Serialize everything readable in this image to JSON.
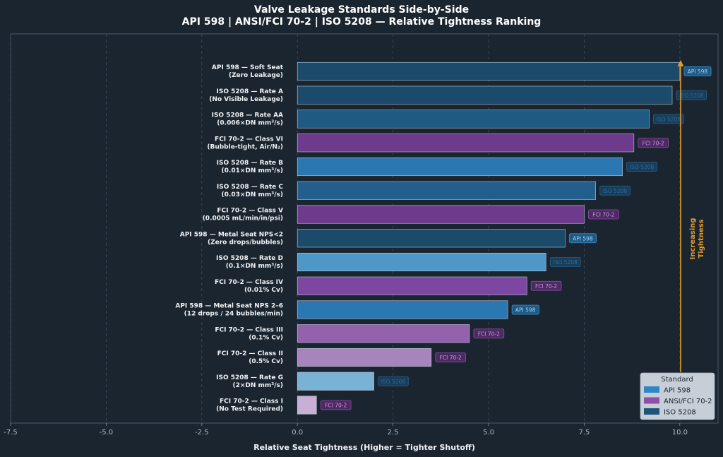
{
  "chart_data": {
    "type": "bar",
    "orientation": "horizontal",
    "title": "Valve Leakage Standards Side-by-Side",
    "subtitle": "API 598 | ANSI/FCI 70-2 | ISO 5208 — Relative Tightness Ranking",
    "xlabel": "Relative Seat Tightness (Higher = Tighter Shutoff)",
    "xlim": [
      -7.5,
      11.0
    ],
    "xticks": [
      "-7.5",
      "-5.0",
      "-2.5",
      "0.0",
      "2.5",
      "5.0",
      "7.5",
      "10.0"
    ],
    "xtick_values": [
      -7.5,
      -5.0,
      -2.5,
      0.0,
      2.5,
      5.0,
      7.5,
      10.0
    ],
    "grid": true,
    "colors": {
      "background": "#1b2530",
      "api": "#2f86c7",
      "fci": "#8e4fa8",
      "iso": "#1f5479",
      "arrow": "#e39b2c",
      "legend_bg": "#d5dde6"
    },
    "items": [
      {
        "line1": "API 598 — Soft Seat",
        "line2": "(Zero Leakage)",
        "value": 10.0,
        "standard": "api",
        "color": "#1b4a6b",
        "badge": "API 598"
      },
      {
        "line1": "ISO 5208 — Rate A",
        "line2": "(No Visible Leakage)",
        "value": 9.8,
        "standard": "iso",
        "color": "#1b4a6b",
        "badge": "ISO 5208"
      },
      {
        "line1": "ISO 5208 — Rate AA",
        "line2": "(0.006×DN mm³/s)",
        "value": 9.2,
        "standard": "iso",
        "color": "#1f5a82",
        "badge": "ISO 5208"
      },
      {
        "line1": "FCI 70-2 — Class VI",
        "line2": "(Bubble-tight, Air/N₂)",
        "value": 8.8,
        "standard": "fci",
        "color": "#6e3a8c",
        "badge": "FCI 70-2"
      },
      {
        "line1": "ISO 5208 — Rate B",
        "line2": "(0.01×DN mm³/s)",
        "value": 8.5,
        "standard": "iso",
        "color": "#2a77b2",
        "badge": "ISO 5208"
      },
      {
        "line1": "ISO 5208 — Rate C",
        "line2": "(0.03×DN mm³/s)",
        "value": 7.8,
        "standard": "iso",
        "color": "#225f8c",
        "badge": "ISO 5208"
      },
      {
        "line1": "FCI 70-2 — Class V",
        "line2": "(0.0005 mL/min/in/psi)",
        "value": 7.5,
        "standard": "fci",
        "color": "#6e3a8c",
        "badge": "FCI 70-2"
      },
      {
        "line1": "API 598 — Metal Seat NPS<2",
        "line2": "(Zero drops/bubbles)",
        "value": 7.0,
        "standard": "api",
        "color": "#1b4a6b",
        "badge": "API 598"
      },
      {
        "line1": "ISO 5208 — Rate D",
        "line2": "(0.1×DN mm³/s)",
        "value": 6.5,
        "standard": "iso",
        "color": "#4d97c9",
        "badge": "ISO 5208"
      },
      {
        "line1": "FCI 70-2 — Class IV",
        "line2": "(0.01% Cv)",
        "value": 6.0,
        "standard": "fci",
        "color": "#7b47a0",
        "badge": "FCI 70-2"
      },
      {
        "line1": "API 598 — Metal Seat NPS 2–6",
        "line2": "(12 drops / 24 bubbles/min)",
        "value": 5.5,
        "standard": "api",
        "color": "#2a77b2",
        "badge": "API 598"
      },
      {
        "line1": "FCI 70-2 — Class III",
        "line2": "(0.1% Cv)",
        "value": 4.5,
        "standard": "fci",
        "color": "#9462ad",
        "badge": "FCI 70-2"
      },
      {
        "line1": "FCI 70-2 — Class II",
        "line2": "(0.5% Cv)",
        "value": 3.5,
        "standard": "fci",
        "color": "#a884bd",
        "badge": "FCI 70-2"
      },
      {
        "line1": "ISO 5208 — Rate G",
        "line2": "(2×DN mm³/s)",
        "value": 2.0,
        "standard": "iso",
        "color": "#7ab2d6",
        "badge": "ISO 5208"
      },
      {
        "line1": "FCI 70-2 — Class I",
        "line2": "(No Test Required)",
        "value": 0.5,
        "standard": "fci",
        "color": "#c7b0d3",
        "badge": "FCI 70-2"
      }
    ],
    "annotation": {
      "line1": "Increasing",
      "line2": "Tightness"
    },
    "legend": {
      "title": "Standard",
      "position": "bottom-right",
      "entries": [
        {
          "label": "API 598",
          "color": "#2f86c7"
        },
        {
          "label": "ANSI/FCI 70-2",
          "color": "#8e4fa8"
        },
        {
          "label": "ISO 5208",
          "color": "#1f5479"
        }
      ]
    }
  }
}
